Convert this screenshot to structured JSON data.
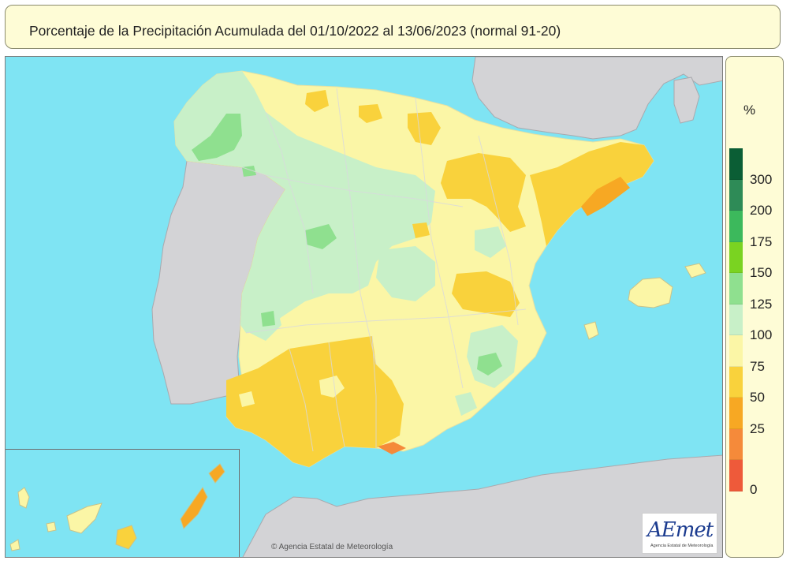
{
  "title": "Porcentaje de la Precipitación Acumulada del 01/10/2022 al 13/06/2023 (normal 91-20)",
  "legend": {
    "unit": "%",
    "classes": [
      {
        "label": "300",
        "color": "#0b5e35"
      },
      {
        "label": "200",
        "color": "#2e8b57"
      },
      {
        "label": "175",
        "color": "#3cb95c"
      },
      {
        "label": "150",
        "color": "#7ad321"
      },
      {
        "label": "125",
        "color": "#8fe08f"
      },
      {
        "label": "100",
        "color": "#c8f0c8"
      },
      {
        "label": "75",
        "color": "#fbf6a6"
      },
      {
        "label": "50",
        "color": "#f9d23c"
      },
      {
        "label": "25",
        "color": "#f7a823"
      },
      {
        "label": "",
        "color": "#f58a3a"
      },
      {
        "label": "0",
        "color": "#ee5a3a"
      }
    ]
  },
  "map": {
    "sea_color": "#7fe4f3",
    "land_other_color": "#d3d3d6",
    "inset": "canarias"
  },
  "copyright": "© Agencia Estatal de Meteorología",
  "logo": {
    "name": "AEmet",
    "subtitle": "Agencia Estatal de Meteorología"
  }
}
